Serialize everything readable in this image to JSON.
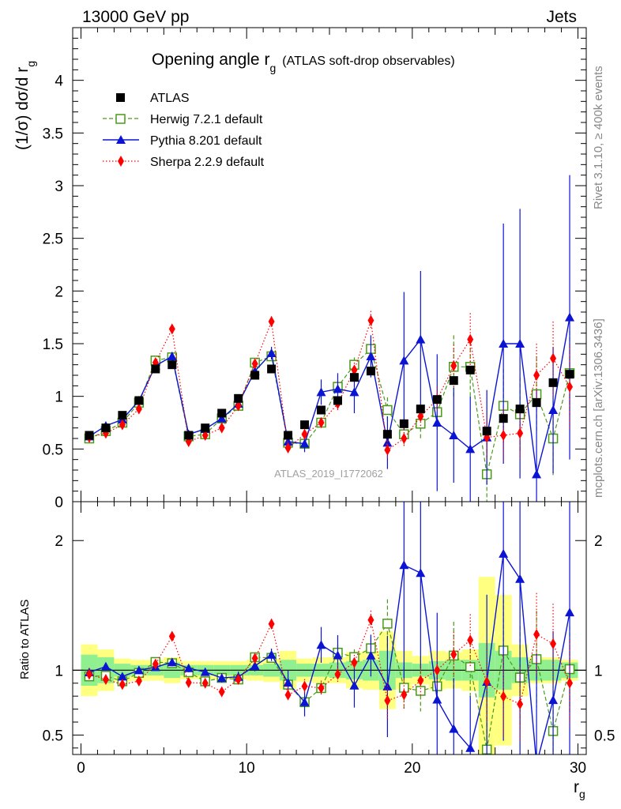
{
  "header": {
    "left": "13000 GeV pp",
    "right": "Jets"
  },
  "side_labels": {
    "rivet": "Rivet 3.1.10, ≥ 400k events",
    "mcplots": "mcplots.cern.ch [arXiv:1306.3436]"
  },
  "chart_data": {
    "type": "scatter",
    "title": "Opening angle r",
    "title_sub": "g",
    "title_suffix": "(ATLAS soft-drop observables)",
    "watermark": "ATLAS_2019_I1772062",
    "ylabel_main": "(1/σ) dσ/d r",
    "ylabel_main_sub": "g",
    "ylabel_ratio": "Ratio to ATLAS",
    "xlabel": "r",
    "xlabel_sub": "g",
    "xlim": [
      -0.5,
      30.5
    ],
    "ylim_main": [
      0,
      4.5
    ],
    "ylim_ratio": [
      0.35,
      2.3
    ],
    "x_ticks": [
      0,
      10,
      20,
      30
    ],
    "y_ticks_main": [
      0,
      0.5,
      1,
      1.5,
      2,
      2.5,
      3,
      3.5,
      4
    ],
    "y_ticks_ratio": [
      0.5,
      1,
      2
    ],
    "grid": false,
    "legend_position": "top-left",
    "x": [
      0.5,
      1.5,
      2.5,
      3.5,
      4.5,
      5.5,
      6.5,
      7.5,
      8.5,
      9.5,
      10.5,
      11.5,
      12.5,
      13.5,
      14.5,
      15.5,
      16.5,
      17.5,
      18.5,
      19.5,
      20.5,
      21.5,
      22.5,
      23.5,
      24.5,
      25.5,
      26.5,
      27.5,
      28.5,
      29.5
    ],
    "series": [
      {
        "name": "ATLAS",
        "style": "data",
        "color": "#000000",
        "values": [
          0.63,
          0.7,
          0.82,
          0.96,
          1.26,
          1.3,
          0.63,
          0.7,
          0.84,
          0.98,
          1.2,
          1.26,
          0.63,
          0.73,
          0.87,
          0.96,
          1.18,
          1.24,
          0.64,
          0.74,
          0.88,
          0.97,
          1.15,
          1.25,
          0.67,
          0.79,
          0.88,
          0.94,
          1.13,
          1.21
        ]
      },
      {
        "name": "Herwig 7.2.1 default",
        "style": "open-square-dashed",
        "color": "#4a9a1a",
        "values": [
          0.6,
          0.67,
          0.75,
          0.94,
          1.34,
          1.37,
          0.62,
          0.64,
          0.79,
          0.91,
          1.32,
          1.38,
          0.56,
          0.55,
          0.75,
          1.09,
          1.3,
          1.45,
          0.87,
          0.64,
          0.74,
          0.85,
          1.28,
          1.28,
          0.26,
          0.91,
          0.83,
          1.02,
          0.6,
          1.22
        ],
        "errors": [
          0.02,
          0.02,
          0.02,
          0.02,
          0.03,
          0.03,
          0.02,
          0.02,
          0.02,
          0.03,
          0.03,
          0.04,
          0.03,
          0.03,
          0.04,
          0.06,
          0.07,
          0.09,
          0.12,
          0.12,
          0.14,
          0.17,
          0.3,
          0.3,
          0.3,
          0.35,
          0.35,
          0.35,
          0.35,
          0.4
        ]
      },
      {
        "name": "Pythia 8.201 default",
        "style": "filled-triangle-solid",
        "color": "#0a14d2",
        "values": [
          0.62,
          0.72,
          0.78,
          0.96,
          1.29,
          1.38,
          0.64,
          0.69,
          0.79,
          0.93,
          1.24,
          1.41,
          0.57,
          0.55,
          1.04,
          1.07,
          1.04,
          1.38,
          0.56,
          1.34,
          1.54,
          0.75,
          0.63,
          0.5,
          0.61,
          1.5,
          1.5,
          0.26,
          0.87,
          1.75
        ],
        "errors": [
          0.02,
          0.02,
          0.02,
          0.03,
          0.03,
          0.04,
          0.02,
          0.02,
          0.03,
          0.04,
          0.05,
          0.06,
          0.06,
          0.08,
          0.12,
          0.15,
          0.2,
          0.2,
          0.25,
          0.65,
          0.65,
          0.65,
          0.45,
          0.5,
          0.45,
          1.14,
          1.28,
          0.8,
          0.6,
          1.35
        ]
      },
      {
        "name": "Sherpa 2.2.9 default",
        "style": "filled-diamond-dotted",
        "color": "#ff0000",
        "values": [
          0.61,
          0.65,
          0.73,
          0.88,
          1.32,
          1.64,
          0.57,
          0.63,
          0.7,
          0.91,
          1.31,
          1.71,
          0.51,
          0.64,
          0.75,
          0.93,
          1.25,
          1.72,
          0.49,
          0.6,
          0.81,
          0.97,
          1.29,
          1.54,
          0.61,
          0.63,
          0.65,
          1.2,
          1.36,
          1.09
        ],
        "errors": [
          0.02,
          0.02,
          0.02,
          0.02,
          0.03,
          0.04,
          0.02,
          0.02,
          0.02,
          0.03,
          0.04,
          0.05,
          0.03,
          0.04,
          0.05,
          0.07,
          0.07,
          0.09,
          0.09,
          0.09,
          0.1,
          0.12,
          0.2,
          0.25,
          0.2,
          0.25,
          0.25,
          0.3,
          0.35,
          0.4
        ]
      }
    ],
    "ratio": {
      "reference": 1.0,
      "atlas_band_inner": [
        0.12,
        0.1,
        0.05,
        0.04,
        0.04,
        0.06,
        0.04,
        0.04,
        0.04,
        0.04,
        0.04,
        0.05,
        0.08,
        0.05,
        0.05,
        0.06,
        0.07,
        0.08,
        0.15,
        0.06,
        0.05,
        0.07,
        0.08,
        0.08,
        0.21,
        0.15,
        0.1,
        0.08,
        0.08,
        0.06
      ],
      "atlas_band_outer": [
        0.2,
        0.16,
        0.09,
        0.08,
        0.08,
        0.1,
        0.07,
        0.07,
        0.07,
        0.07,
        0.08,
        0.09,
        0.15,
        0.09,
        0.1,
        0.1,
        0.14,
        0.15,
        0.3,
        0.15,
        0.11,
        0.15,
        0.14,
        0.16,
        0.72,
        0.58,
        0.2,
        0.1,
        0.1,
        0.08
      ]
    }
  }
}
